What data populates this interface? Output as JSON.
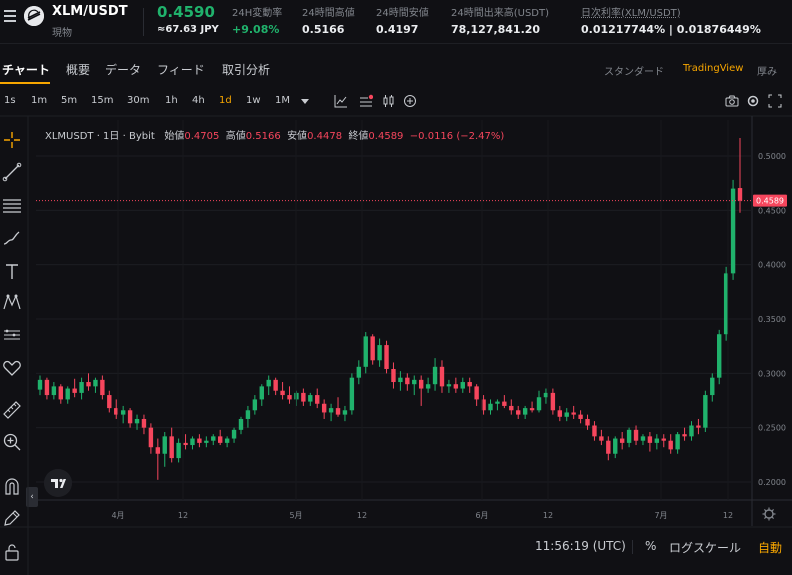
{
  "ticker": {
    "pair": "XLM/USDT",
    "market_type": "現物",
    "price": "0.4590",
    "price_jpy": "≈67.63 JPY",
    "stats": [
      {
        "label": "24H変動率",
        "value": "+9.08%",
        "color": "#20b26c"
      },
      {
        "label": "24時間高値",
        "value": "0.5166",
        "color": "#eaecef"
      },
      {
        "label": "24時間安値",
        "value": "0.4197",
        "color": "#eaecef"
      },
      {
        "label": "24時間出来高(USDT)",
        "value": "78,127,841.20",
        "color": "#eaecef"
      },
      {
        "label": "日次利率(XLM/USDT)",
        "value": "0.01217744% | 0.01876449%",
        "color": "#eaecef"
      }
    ]
  },
  "tabs": [
    "チャート",
    "概要",
    "データ",
    "フィード",
    "取引分析"
  ],
  "active_tab": "チャート",
  "views": [
    "スタンダード",
    "TradingView",
    "厚み"
  ],
  "active_view": "TradingView",
  "timeframes": [
    "1s",
    "1m",
    "5m",
    "15m",
    "30m",
    "1h",
    "4h",
    "1d",
    "1w",
    "1M"
  ],
  "active_timeframe": "1d",
  "legend": {
    "symbol": "XLMUSDT · 1日 · Bybit",
    "open_label": "始値",
    "open": "0.4705",
    "high_label": "高値",
    "high": "0.5166",
    "low_label": "安値",
    "low": "0.4478",
    "close_label": "終値",
    "close": "0.4589",
    "change": "−0.0116 (−2.47%)"
  },
  "bottom": {
    "time": "11:56:19 (UTC)",
    "percent": "%",
    "log_scale": "ログスケール",
    "auto": "自動"
  },
  "colors": {
    "up": "#20b26c",
    "down": "#f6465d",
    "accent": "#f7a600",
    "background": "#101014"
  },
  "icons": [
    "menu-icon",
    "stellar-logo-icon",
    "indicator-icon",
    "crosshair-icon",
    "trendline-icon",
    "text-icon",
    "pattern-icon",
    "heart-icon",
    "ruler-icon",
    "zoom-icon",
    "magnet-icon",
    "lock-icon",
    "camera-icon",
    "settings-icon",
    "fullscreen-icon",
    "tradingview-logo-icon"
  ],
  "chart_data": {
    "type": "candlestick",
    "title": "XLMUSDT · 1日 · Bybit",
    "y_ticks": [
      0.5,
      0.45,
      0.4,
      0.35,
      0.3,
      0.25,
      0.2
    ],
    "x_ticks": [
      "4月",
      "12",
      "5月",
      "12",
      "6月",
      "12",
      "7月",
      "12"
    ],
    "ylim": [
      0.18,
      0.52
    ],
    "current_price": "0.4589",
    "ohlc": [
      [
        0.285,
        0.298,
        0.28,
        0.294
      ],
      [
        0.294,
        0.296,
        0.276,
        0.28
      ],
      [
        0.28,
        0.292,
        0.276,
        0.288
      ],
      [
        0.288,
        0.29,
        0.272,
        0.276
      ],
      [
        0.276,
        0.288,
        0.272,
        0.286
      ],
      [
        0.286,
        0.295,
        0.278,
        0.282
      ],
      [
        0.282,
        0.296,
        0.276,
        0.292
      ],
      [
        0.292,
        0.3,
        0.284,
        0.288
      ],
      [
        0.288,
        0.296,
        0.282,
        0.294
      ],
      [
        0.294,
        0.298,
        0.276,
        0.28
      ],
      [
        0.28,
        0.284,
        0.264,
        0.268
      ],
      [
        0.268,
        0.276,
        0.258,
        0.262
      ],
      [
        0.262,
        0.27,
        0.254,
        0.266
      ],
      [
        0.266,
        0.268,
        0.25,
        0.254
      ],
      [
        0.254,
        0.262,
        0.248,
        0.258
      ],
      [
        0.258,
        0.262,
        0.244,
        0.25
      ],
      [
        0.25,
        0.254,
        0.226,
        0.232
      ],
      [
        0.232,
        0.24,
        0.202,
        0.226
      ],
      [
        0.226,
        0.246,
        0.214,
        0.242
      ],
      [
        0.242,
        0.25,
        0.218,
        0.222
      ],
      [
        0.222,
        0.24,
        0.218,
        0.236
      ],
      [
        0.236,
        0.244,
        0.23,
        0.234
      ],
      [
        0.234,
        0.242,
        0.23,
        0.24
      ],
      [
        0.24,
        0.244,
        0.232,
        0.236
      ],
      [
        0.236,
        0.242,
        0.232,
        0.238
      ],
      [
        0.238,
        0.244,
        0.234,
        0.242
      ],
      [
        0.242,
        0.248,
        0.234,
        0.236
      ],
      [
        0.236,
        0.242,
        0.232,
        0.24
      ],
      [
        0.24,
        0.25,
        0.236,
        0.248
      ],
      [
        0.248,
        0.26,
        0.244,
        0.258
      ],
      [
        0.258,
        0.27,
        0.25,
        0.266
      ],
      [
        0.266,
        0.28,
        0.262,
        0.276
      ],
      [
        0.276,
        0.29,
        0.27,
        0.288
      ],
      [
        0.288,
        0.298,
        0.28,
        0.294
      ],
      [
        0.294,
        0.296,
        0.28,
        0.284
      ],
      [
        0.284,
        0.292,
        0.276,
        0.28
      ],
      [
        0.28,
        0.288,
        0.272,
        0.276
      ],
      [
        0.276,
        0.284,
        0.27,
        0.282
      ],
      [
        0.282,
        0.286,
        0.27,
        0.274
      ],
      [
        0.274,
        0.282,
        0.27,
        0.28
      ],
      [
        0.28,
        0.286,
        0.268,
        0.272
      ],
      [
        0.272,
        0.276,
        0.258,
        0.264
      ],
      [
        0.264,
        0.272,
        0.256,
        0.268
      ],
      [
        0.268,
        0.278,
        0.26,
        0.262
      ],
      [
        0.262,
        0.27,
        0.256,
        0.266
      ],
      [
        0.266,
        0.3,
        0.262,
        0.296
      ],
      [
        0.296,
        0.312,
        0.29,
        0.306
      ],
      [
        0.306,
        0.338,
        0.3,
        0.334
      ],
      [
        0.334,
        0.336,
        0.308,
        0.312
      ],
      [
        0.312,
        0.332,
        0.306,
        0.326
      ],
      [
        0.326,
        0.33,
        0.3,
        0.304
      ],
      [
        0.304,
        0.31,
        0.286,
        0.292
      ],
      [
        0.292,
        0.302,
        0.284,
        0.296
      ],
      [
        0.296,
        0.3,
        0.284,
        0.29
      ],
      [
        0.29,
        0.298,
        0.28,
        0.294
      ],
      [
        0.294,
        0.298,
        0.27,
        0.286
      ],
      [
        0.286,
        0.296,
        0.282,
        0.29
      ],
      [
        0.29,
        0.314,
        0.284,
        0.306
      ],
      [
        0.306,
        0.312,
        0.282,
        0.288
      ],
      [
        0.288,
        0.294,
        0.282,
        0.29
      ],
      [
        0.29,
        0.296,
        0.282,
        0.286
      ],
      [
        0.286,
        0.296,
        0.282,
        0.292
      ],
      [
        0.292,
        0.296,
        0.282,
        0.288
      ],
      [
        0.288,
        0.29,
        0.27,
        0.276
      ],
      [
        0.276,
        0.28,
        0.262,
        0.266
      ],
      [
        0.266,
        0.276,
        0.262,
        0.272
      ],
      [
        0.272,
        0.276,
        0.266,
        0.274
      ],
      [
        0.274,
        0.28,
        0.268,
        0.27
      ],
      [
        0.27,
        0.276,
        0.262,
        0.266
      ],
      [
        0.266,
        0.27,
        0.258,
        0.262
      ],
      [
        0.262,
        0.27,
        0.258,
        0.268
      ],
      [
        0.268,
        0.274,
        0.264,
        0.266
      ],
      [
        0.266,
        0.284,
        0.264,
        0.278
      ],
      [
        0.278,
        0.286,
        0.272,
        0.282
      ],
      [
        0.282,
        0.286,
        0.262,
        0.266
      ],
      [
        0.266,
        0.27,
        0.256,
        0.26
      ],
      [
        0.26,
        0.268,
        0.256,
        0.264
      ],
      [
        0.264,
        0.27,
        0.258,
        0.262
      ],
      [
        0.262,
        0.266,
        0.254,
        0.258
      ],
      [
        0.258,
        0.262,
        0.248,
        0.252
      ],
      [
        0.252,
        0.256,
        0.238,
        0.242
      ],
      [
        0.242,
        0.248,
        0.234,
        0.238
      ],
      [
        0.238,
        0.242,
        0.22,
        0.226
      ],
      [
        0.226,
        0.242,
        0.222,
        0.24
      ],
      [
        0.24,
        0.246,
        0.23,
        0.236
      ],
      [
        0.236,
        0.25,
        0.232,
        0.248
      ],
      [
        0.248,
        0.252,
        0.234,
        0.238
      ],
      [
        0.238,
        0.244,
        0.234,
        0.242
      ],
      [
        0.242,
        0.246,
        0.228,
        0.236
      ],
      [
        0.236,
        0.244,
        0.23,
        0.24
      ],
      [
        0.24,
        0.244,
        0.232,
        0.238
      ],
      [
        0.238,
        0.244,
        0.226,
        0.23
      ],
      [
        0.23,
        0.246,
        0.226,
        0.244
      ],
      [
        0.244,
        0.25,
        0.238,
        0.242
      ],
      [
        0.242,
        0.256,
        0.238,
        0.252
      ],
      [
        0.252,
        0.258,
        0.244,
        0.25
      ],
      [
        0.25,
        0.284,
        0.246,
        0.28
      ],
      [
        0.28,
        0.3,
        0.274,
        0.296
      ],
      [
        0.296,
        0.34,
        0.29,
        0.336
      ],
      [
        0.336,
        0.398,
        0.33,
        0.392
      ],
      [
        0.392,
        0.478,
        0.386,
        0.47
      ],
      [
        0.4705,
        0.5166,
        0.4478,
        0.4589
      ]
    ]
  }
}
